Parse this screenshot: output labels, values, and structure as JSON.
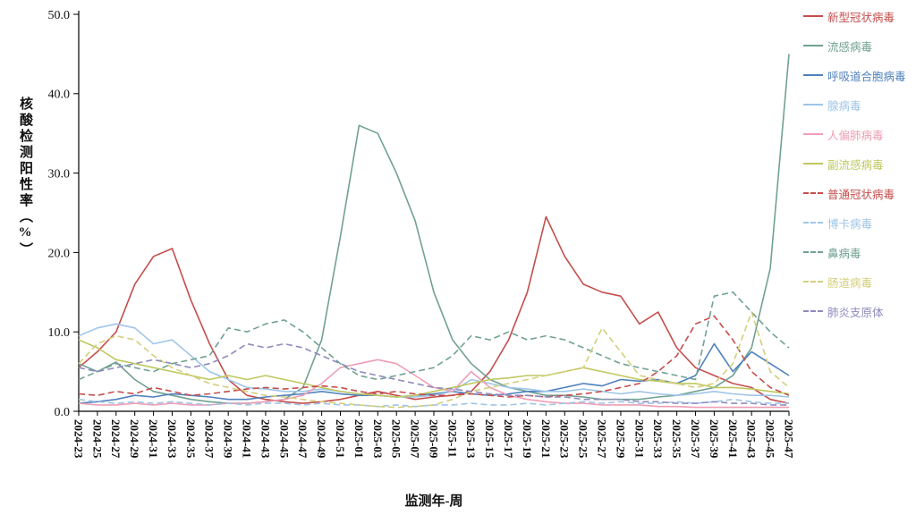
{
  "chart_data": {
    "type": "line",
    "title": "",
    "xlabel": "监测年-周",
    "ylabel": "核酸检测阳性率（%）",
    "ylim": [
      0,
      50
    ],
    "yticks": [
      0,
      10,
      20,
      30,
      40,
      50
    ],
    "ytick_labels": [
      "0.0",
      "10.0",
      "20.0",
      "30.0",
      "40.0",
      "50.0"
    ],
    "grid": false,
    "legend_position": "right",
    "categories": [
      "2024-23",
      "2024-25",
      "2024-27",
      "2024-29",
      "2024-31",
      "2024-33",
      "2024-35",
      "2024-37",
      "2024-39",
      "2024-41",
      "2024-43",
      "2024-45",
      "2024-47",
      "2024-49",
      "2024-51",
      "2025-01",
      "2025-03",
      "2025-05",
      "2025-07",
      "2025-09",
      "2025-11",
      "2025-13",
      "2025-15",
      "2025-17",
      "2025-19",
      "2025-21",
      "2025-23",
      "2025-25",
      "2025-27",
      "2025-29",
      "2025-31",
      "2025-33",
      "2025-35",
      "2025-37",
      "2025-39",
      "2025-41",
      "2025-43",
      "2025-45",
      "2025-47"
    ],
    "series": [
      {
        "name": "新型冠状病毒",
        "color": "#c44e4c",
        "style": "solid",
        "values": [
          5.5,
          7.5,
          10,
          16,
          19.5,
          20.5,
          14,
          8.5,
          4,
          2,
          1.5,
          1.2,
          1,
          1.2,
          1.5,
          2,
          2.5,
          2,
          1.5,
          1.8,
          2,
          2.5,
          5,
          9,
          15,
          24.5,
          19.5,
          16,
          15,
          14.5,
          11,
          12.5,
          8,
          5.5,
          4.5,
          3.5,
          3,
          1.5,
          1
        ]
      },
      {
        "name": "流感病毒",
        "color": "#71a193",
        "style": "solid",
        "values": [
          6,
          5,
          6.2,
          4,
          2.5,
          2,
          1.5,
          1.2,
          1,
          1,
          1.2,
          1.5,
          3,
          9,
          22,
          36,
          35,
          30,
          24,
          15,
          9,
          6,
          4,
          3,
          2.5,
          2,
          2,
          1.8,
          1.5,
          1.5,
          1.5,
          1.8,
          2,
          2.5,
          3,
          4.5,
          8,
          18,
          45
        ]
      },
      {
        "name": "呼吸道合胞病毒",
        "color": "#4f81bd",
        "style": "solid",
        "values": [
          1,
          1.2,
          1.5,
          2,
          1.8,
          2.2,
          2,
          1.8,
          1.5,
          1.5,
          1.8,
          2,
          2.2,
          2.5,
          2.2,
          2,
          2,
          1.8,
          2,
          2.2,
          2.5,
          2.2,
          2,
          2.2,
          2.5,
          2.5,
          3,
          3.5,
          3.2,
          4,
          3.8,
          4,
          3.5,
          4.5,
          8.5,
          5,
          7.5,
          6,
          4.5
        ]
      },
      {
        "name": "腺病毒",
        "color": "#9fc5e8",
        "style": "solid",
        "values": [
          9.5,
          10.5,
          11,
          10.5,
          8.5,
          9,
          7,
          5,
          4,
          3,
          2.8,
          2.5,
          2.5,
          2.8,
          2.5,
          2.2,
          2,
          1.8,
          1.8,
          2,
          2.5,
          4,
          3.5,
          3,
          2.8,
          2.5,
          2.5,
          2.8,
          2.5,
          2.2,
          2.5,
          2.2,
          2,
          2.2,
          2.5,
          2.2,
          2,
          2,
          1.8
        ]
      },
      {
        "name": "人偏肺病毒",
        "color": "#ef9eb5",
        "style": "solid",
        "values": [
          1,
          0.8,
          0.8,
          1,
          0.8,
          1,
          0.8,
          0.8,
          1,
          1,
          1.2,
          1.5,
          2,
          3.5,
          5.5,
          6,
          6.5,
          6,
          4.5,
          3,
          2.5,
          5,
          3,
          2,
          1.5,
          1.2,
          1,
          1,
          0.8,
          0.8,
          0.8,
          0.6,
          0.6,
          0.5,
          0.5,
          0.5,
          0.5,
          0.5,
          0.5
        ]
      },
      {
        "name": "副流感病毒",
        "color": "#bfc85e",
        "style": "solid",
        "values": [
          9,
          8,
          6.5,
          6,
          5.5,
          5,
          4.5,
          4,
          4.5,
          4,
          4.5,
          4,
          3.5,
          3,
          2.5,
          2.2,
          2,
          1.8,
          2,
          2.5,
          3,
          3.5,
          4,
          4.2,
          4.5,
          4.5,
          5,
          5.5,
          5,
          4.5,
          4,
          3.8,
          3.5,
          3.5,
          3,
          3,
          2.8,
          2.5,
          2.2
        ]
      },
      {
        "name": "普通冠状病毒",
        "color": "#c44e4c",
        "style": "dashed",
        "values": [
          2.2,
          2,
          2.5,
          2.2,
          3,
          2.5,
          2,
          2.2,
          2.5,
          2.8,
          3,
          2.8,
          3,
          3.2,
          3,
          2.5,
          2.2,
          2.5,
          2.2,
          2,
          2,
          2.2,
          2,
          1.8,
          2,
          1.8,
          2,
          2.2,
          2.5,
          3,
          3.5,
          5,
          7,
          11,
          12,
          9,
          5,
          3,
          2
        ]
      },
      {
        "name": "博卡病毒",
        "color": "#9fc5e8",
        "style": "dashed",
        "values": [
          1.5,
          1.2,
          1,
          1.2,
          1,
          1.2,
          1,
          0.8,
          1,
          0.8,
          1,
          1,
          0.8,
          1,
          0.8,
          0.8,
          0.6,
          0.8,
          0.6,
          0.8,
          0.8,
          1,
          0.8,
          0.8,
          1,
          0.8,
          1,
          1.2,
          1,
          1.2,
          1,
          1,
          1.2,
          1,
          1.2,
          1.5,
          1.2,
          1,
          1
        ]
      },
      {
        "name": "鼻病毒",
        "color": "#71a193",
        "style": "dashed",
        "values": [
          4,
          5,
          6,
          5.5,
          5,
          6,
          6.5,
          7,
          10.5,
          10,
          11,
          11.5,
          10,
          8,
          6,
          4.5,
          4,
          4.5,
          5,
          5.5,
          7,
          9.5,
          9,
          10,
          9,
          9.5,
          9,
          8,
          7,
          6,
          5.5,
          5,
          4.5,
          4,
          14.5,
          15,
          12.5,
          10,
          8
        ]
      },
      {
        "name": "肠道病毒",
        "color": "#d4cf7c",
        "style": "dashed",
        "values": [
          6,
          8.5,
          9.5,
          9,
          7,
          5.5,
          4.5,
          3.5,
          3,
          2.5,
          2,
          1.8,
          1.5,
          1.2,
          1,
          0.8,
          0.6,
          0.5,
          0.6,
          0.8,
          1.5,
          2.5,
          3,
          3.5,
          4,
          4.5,
          5,
          5.5,
          10.5,
          7.5,
          4.5,
          4,
          3.5,
          3,
          3.5,
          6,
          12.5,
          5,
          3
        ]
      },
      {
        "name": "肺炎支原体",
        "color": "#8f8bbd",
        "style": "dashed",
        "values": [
          5.5,
          5,
          5.5,
          6,
          6.5,
          6,
          5.5,
          6,
          7,
          8.5,
          8,
          8.5,
          8,
          7,
          6,
          5,
          4.5,
          4,
          3.5,
          3,
          2.8,
          2.5,
          2.2,
          2,
          2,
          1.8,
          1.8,
          1.5,
          1.5,
          1.5,
          1.2,
          1.2,
          1,
          1,
          1.2,
          1,
          1,
          0.8,
          0.8
        ]
      }
    ]
  }
}
